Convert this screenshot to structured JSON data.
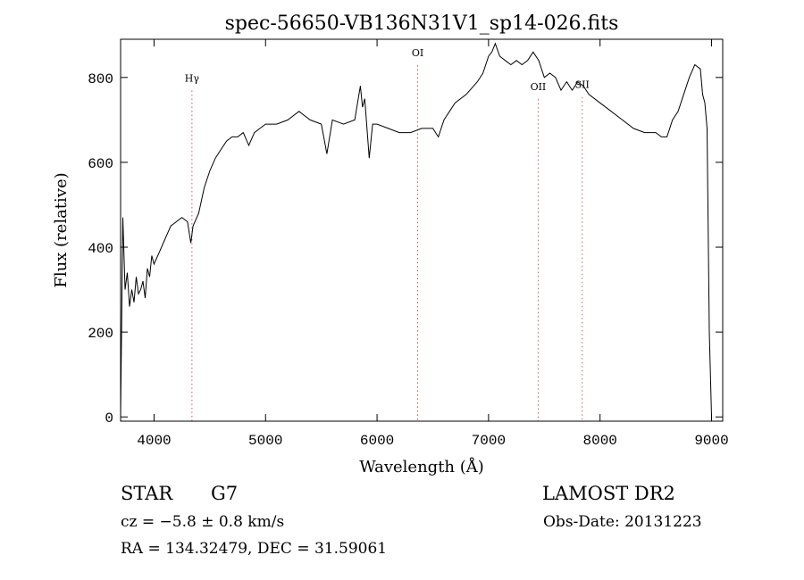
{
  "chart_data": {
    "type": "line",
    "title": "spec-56650-VB136N31V1_sp14-026.fits",
    "xlabel": "Wavelength (Å)",
    "ylabel": "Flux (relative)",
    "xlim": [
      3700,
      9100
    ],
    "ylim": [
      -10,
      890
    ],
    "x_ticks": [
      4000,
      5000,
      6000,
      7000,
      8000,
      9000
    ],
    "y_ticks": [
      0,
      200,
      400,
      600,
      800
    ],
    "grid": false,
    "line_color": "#000000",
    "marker_line_color": "#c06060",
    "series": [
      {
        "x": [
          3700,
          3720,
          3740,
          3760,
          3780,
          3800,
          3820,
          3840,
          3860,
          3880,
          3900,
          3920,
          3940,
          3960,
          3980,
          4000,
          4050,
          4100,
          4150,
          4200,
          4250,
          4300,
          4330,
          4350,
          4400,
          4450,
          4500,
          4550,
          4600,
          4650,
          4700,
          4750,
          4800,
          4850,
          4900,
          4950,
          5000,
          5100,
          5200,
          5300,
          5350,
          5400,
          5500,
          5550,
          5600,
          5700,
          5800,
          5850,
          5870,
          5890,
          5910,
          5930,
          5960,
          6000,
          6100,
          6200,
          6300,
          6400,
          6500,
          6550,
          6600,
          6650,
          6700,
          6800,
          6900,
          6950,
          7000,
          7030,
          7060,
          7100,
          7150,
          7200,
          7250,
          7300,
          7350,
          7400,
          7450,
          7500,
          7550,
          7600,
          7650,
          7700,
          7750,
          7800,
          7850,
          7900,
          8000,
          8100,
          8200,
          8300,
          8400,
          8500,
          8550,
          8600,
          8650,
          8700,
          8750,
          8800,
          8850,
          8900,
          8920,
          8940,
          8960,
          8980,
          9000
        ],
        "y": [
          0,
          470,
          300,
          340,
          260,
          300,
          270,
          330,
          290,
          300,
          320,
          280,
          350,
          330,
          380,
          360,
          390,
          420,
          450,
          460,
          470,
          460,
          410,
          450,
          480,
          540,
          580,
          610,
          630,
          650,
          660,
          660,
          670,
          640,
          670,
          680,
          690,
          690,
          700,
          720,
          710,
          700,
          690,
          620,
          700,
          690,
          700,
          780,
          730,
          750,
          680,
          610,
          690,
          690,
          680,
          670,
          670,
          680,
          680,
          660,
          700,
          720,
          740,
          760,
          790,
          810,
          850,
          860,
          880,
          850,
          840,
          830,
          840,
          830,
          840,
          860,
          840,
          800,
          810,
          800,
          770,
          790,
          770,
          790,
          780,
          760,
          740,
          720,
          700,
          680,
          670,
          670,
          660,
          660,
          700,
          720,
          760,
          800,
          830,
          820,
          760,
          740,
          680,
          200,
          0
        ]
      }
    ],
    "line_markers": [
      {
        "label": "Hγ",
        "x": 4340,
        "y": 790
      },
      {
        "label": "OI",
        "x": 6364,
        "y": 850
      },
      {
        "label": "OII",
        "x": 7445,
        "y": 770
      },
      {
        "label": "SII",
        "x": 7840,
        "y": 775
      }
    ]
  },
  "footer": {
    "class_label": "STAR",
    "subclass_label": "G7",
    "survey_label": "LAMOST DR2",
    "cz_text": "cz = −5.8 ± 0.8 km/s",
    "obs_date_text": "Obs-Date: 20131223",
    "radec_text": "RA = 134.32479, DEC =  31.59061"
  }
}
